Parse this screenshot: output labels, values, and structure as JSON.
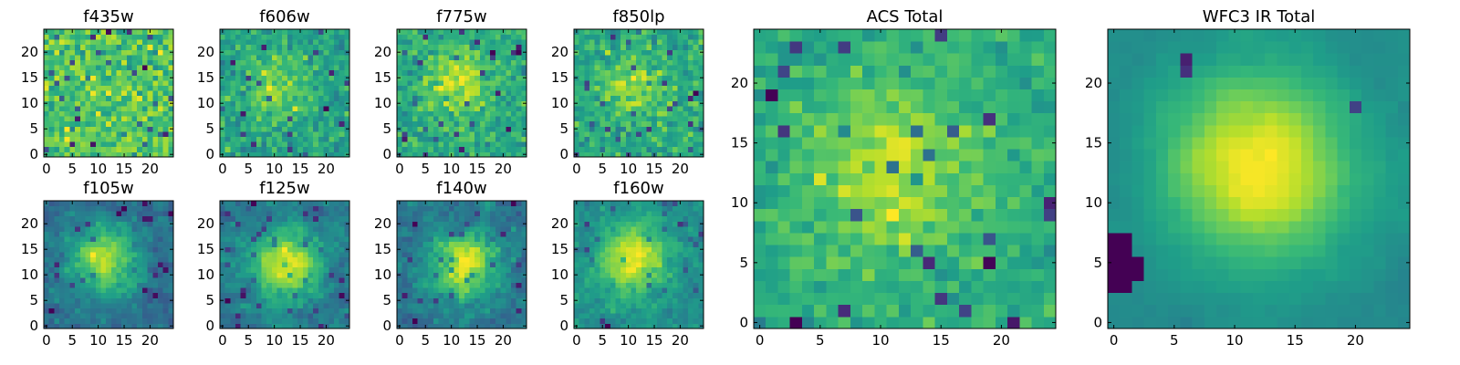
{
  "figure": {
    "background": "#ffffff"
  },
  "chart_data": [
    {
      "type": "heatmap",
      "title": "f435w",
      "xticks": [
        0,
        5,
        10,
        15,
        20
      ],
      "yticks": [
        0,
        5,
        10,
        15,
        20
      ],
      "xlim": [
        -0.5,
        24.5
      ],
      "ylim": [
        -0.5,
        24.5
      ],
      "grid_size": [
        25,
        25
      ],
      "colormap": "viridis",
      "origin": "lower",
      "structure": "noisy, no visible source"
    },
    {
      "type": "heatmap",
      "title": "f606w",
      "xticks": [
        0,
        5,
        10,
        15,
        20
      ],
      "yticks": [
        0,
        5,
        10,
        15,
        20
      ],
      "xlim": [
        -0.5,
        24.5
      ],
      "ylim": [
        -0.5,
        24.5
      ],
      "grid_size": [
        25,
        25
      ],
      "colormap": "viridis",
      "origin": "lower",
      "structure": "noisy, faint central source"
    },
    {
      "type": "heatmap",
      "title": "f775w",
      "xticks": [
        0,
        5,
        10,
        15,
        20
      ],
      "yticks": [
        0,
        5,
        10,
        15,
        20
      ],
      "xlim": [
        -0.5,
        24.5
      ],
      "ylim": [
        -0.5,
        24.5
      ],
      "grid_size": [
        25,
        25
      ],
      "colormap": "viridis",
      "origin": "lower",
      "structure": "noisy, faint central source"
    },
    {
      "type": "heatmap",
      "title": "f850lp",
      "xticks": [
        0,
        5,
        10,
        15,
        20
      ],
      "yticks": [
        0,
        5,
        10,
        15,
        20
      ],
      "xlim": [
        -0.5,
        24.5
      ],
      "ylim": [
        -0.5,
        24.5
      ],
      "grid_size": [
        25,
        25
      ],
      "colormap": "viridis",
      "origin": "lower",
      "structure": "noisy, faint central source"
    },
    {
      "type": "heatmap",
      "title": "f105w",
      "xticks": [
        0,
        5,
        10,
        15,
        20
      ],
      "yticks": [
        0,
        5,
        10,
        15,
        20
      ],
      "xlim": [
        -0.5,
        24.5
      ],
      "ylim": [
        -0.5,
        24.5
      ],
      "grid_size": [
        25,
        25
      ],
      "colormap": "viridis",
      "origin": "lower",
      "structure": "central source near (11, 13)"
    },
    {
      "type": "heatmap",
      "title": "f125w",
      "xticks": [
        0,
        5,
        10,
        15,
        20
      ],
      "yticks": [
        0,
        5,
        10,
        15,
        20
      ],
      "xlim": [
        -0.5,
        24.5
      ],
      "ylim": [
        -0.5,
        24.5
      ],
      "grid_size": [
        25,
        25
      ],
      "colormap": "viridis",
      "origin": "lower",
      "structure": "central source near (12, 12)"
    },
    {
      "type": "heatmap",
      "title": "f140w",
      "xticks": [
        0,
        5,
        10,
        15,
        20
      ],
      "yticks": [
        0,
        5,
        10,
        15,
        20
      ],
      "xlim": [
        -0.5,
        24.5
      ],
      "ylim": [
        -0.5,
        24.5
      ],
      "grid_size": [
        25,
        25
      ],
      "colormap": "viridis",
      "origin": "lower",
      "structure": "central source near (12, 12)"
    },
    {
      "type": "heatmap",
      "title": "f160w",
      "xticks": [
        0,
        5,
        10,
        15,
        20
      ],
      "yticks": [
        0,
        5,
        10,
        15,
        20
      ],
      "xlim": [
        -0.5,
        24.5
      ],
      "ylim": [
        -0.5,
        24.5
      ],
      "grid_size": [
        25,
        25
      ],
      "colormap": "viridis",
      "origin": "lower",
      "structure": "central source near (11, 13)"
    },
    {
      "type": "heatmap",
      "title": "ACS Total",
      "xticks": [
        0,
        5,
        10,
        15,
        20
      ],
      "yticks": [
        0,
        5,
        10,
        15,
        20
      ],
      "xlim": [
        -0.5,
        24.5
      ],
      "ylim": [
        -0.5,
        24.5
      ],
      "grid_size": [
        25,
        25
      ],
      "colormap": "viridis",
      "origin": "lower",
      "structure": "noisy, extended central source"
    },
    {
      "type": "heatmap",
      "title": "WFC3 IR Total",
      "xticks": [
        0,
        5,
        10,
        15,
        20
      ],
      "yticks": [
        0,
        5,
        10,
        15,
        20
      ],
      "xlim": [
        -0.5,
        24.5
      ],
      "ylim": [
        -0.5,
        24.5
      ],
      "grid_size": [
        25,
        25
      ],
      "colormap": "viridis",
      "origin": "lower",
      "structure": "smooth source near (12, 13), dark region lower-left"
    }
  ]
}
